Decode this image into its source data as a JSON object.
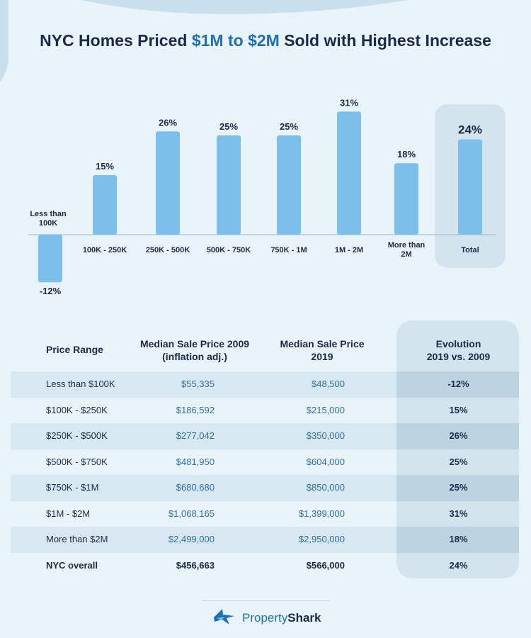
{
  "title": {
    "prefix": "NYC Homes Priced ",
    "accent": "$1M to $2M",
    "suffix": " Sold with Highest Increase"
  },
  "chart_data": {
    "type": "bar",
    "categories": [
      "Less than 100K",
      "100K - 250K",
      "250K - 500K",
      "500K - 750K",
      "750K - 1M",
      "1M - 2M",
      "More than 2M",
      "Total"
    ],
    "values": [
      -12,
      15,
      26,
      25,
      25,
      31,
      18,
      24
    ],
    "labels": [
      "-12%",
      "15%",
      "26%",
      "25%",
      "25%",
      "31%",
      "18%",
      "24%"
    ],
    "title": "NYC Homes Priced $1M to $2M Sold with Highest Increase",
    "highlight": "Total",
    "grid": false
  },
  "table": {
    "headers": {
      "range": "Price Range",
      "p2009": [
        "Median Sale Price 2009",
        "(inflation adj.)"
      ],
      "p2019": [
        "Median Sale Price",
        "2019"
      ],
      "evo": [
        "Evolution",
        "2019 vs. 2009"
      ]
    },
    "rows": [
      {
        "range": "Less than $100K",
        "p2009": "$55,335",
        "p2019": "$48,500",
        "evo": "-12%"
      },
      {
        "range": "$100K - $250K",
        "p2009": "$186,592",
        "p2019": "$215,000",
        "evo": "15%"
      },
      {
        "range": "$250K - $500K",
        "p2009": "$277,042",
        "p2019": "$350,000",
        "evo": "26%"
      },
      {
        "range": "$500K - $750K",
        "p2009": "$481,950",
        "p2019": "$604,000",
        "evo": "25%"
      },
      {
        "range": "$750K - $1M",
        "p2009": "$680,680",
        "p2019": "$850,000",
        "evo": "25%"
      },
      {
        "range": "$1M - $2M",
        "p2009": "$1,068,165",
        "p2019": "$1,399,000",
        "evo": "31%"
      },
      {
        "range": "More than $2M",
        "p2009": "$2,499,000",
        "p2019": "$2,950,000",
        "evo": "18%"
      },
      {
        "range": "NYC overall",
        "p2009": "$456,663",
        "p2019": "$566,000",
        "evo": "24%"
      }
    ]
  },
  "brand": {
    "part1": "Property",
    "part2": "Shark",
    "icon": "shark-icon"
  },
  "colors": {
    "bar": "#7bbfea",
    "accent": "#1f6fb4",
    "background": "#e9f3fa",
    "highlight_panel": "#d3e4ee"
  }
}
